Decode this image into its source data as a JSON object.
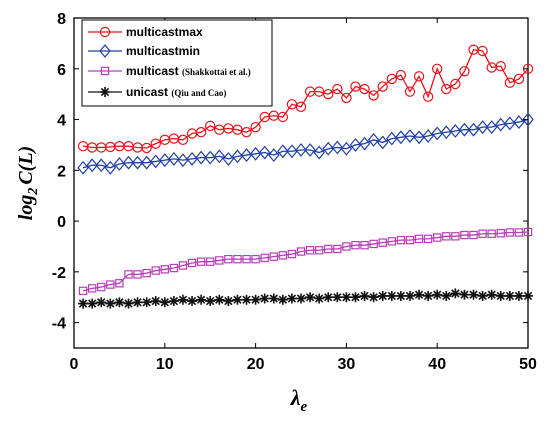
{
  "chart_data": {
    "type": "line",
    "xlabel_main": "λ",
    "xlabel_sub": "e",
    "ylabel_pre": "log",
    "ylabel_sub": "2",
    "ylabel_post": "C(L)",
    "xlim": [
      0,
      50
    ],
    "ylim": [
      -5,
      8
    ],
    "xticks": [
      0,
      10,
      20,
      30,
      40,
      50
    ],
    "yticks": [
      -4,
      -2,
      0,
      2,
      4,
      6,
      8
    ],
    "grid": false,
    "legend_position": "top-left",
    "x": [
      1,
      2,
      3,
      4,
      5,
      6,
      7,
      8,
      9,
      10,
      11,
      12,
      13,
      14,
      15,
      16,
      17,
      18,
      19,
      20,
      21,
      22,
      23,
      24,
      25,
      26,
      27,
      28,
      29,
      30,
      31,
      32,
      33,
      34,
      35,
      36,
      37,
      38,
      39,
      40,
      41,
      42,
      43,
      44,
      45,
      46,
      47,
      48,
      49,
      50
    ],
    "series": [
      {
        "name": "multicastmax",
        "note": "",
        "color": "#e8141c",
        "marker": "circle",
        "values": [
          2.95,
          2.9,
          2.9,
          2.92,
          2.95,
          2.95,
          2.9,
          2.88,
          3.05,
          3.2,
          3.25,
          3.2,
          3.45,
          3.5,
          3.75,
          3.6,
          3.65,
          3.6,
          3.5,
          3.7,
          4.1,
          4.15,
          4.1,
          4.6,
          4.5,
          5.1,
          5.1,
          5.0,
          5.2,
          4.85,
          5.3,
          5.2,
          4.95,
          5.3,
          5.6,
          5.75,
          5.1,
          5.7,
          4.9,
          6.0,
          5.2,
          5.4,
          5.9,
          6.75,
          6.7,
          6.05,
          6.1,
          5.45,
          5.6,
          6.0
        ]
      },
      {
        "name": "multicastmin",
        "note": "",
        "color": "#1f3fa5",
        "marker": "diamond",
        "values": [
          2.1,
          2.2,
          2.2,
          2.1,
          2.25,
          2.3,
          2.3,
          2.3,
          2.35,
          2.4,
          2.45,
          2.4,
          2.45,
          2.5,
          2.5,
          2.55,
          2.45,
          2.55,
          2.6,
          2.65,
          2.7,
          2.6,
          2.75,
          2.75,
          2.8,
          2.8,
          2.7,
          2.85,
          2.9,
          2.85,
          3.0,
          3.05,
          3.2,
          3.1,
          3.25,
          3.3,
          3.35,
          3.3,
          3.35,
          3.45,
          3.5,
          3.55,
          3.6,
          3.6,
          3.7,
          3.7,
          3.8,
          3.85,
          3.9,
          4.0
        ]
      },
      {
        "name": "multicast",
        "note": "(Shakkottai et al.)",
        "color": "#b83db8",
        "marker": "square",
        "values": [
          -2.75,
          -2.65,
          -2.6,
          -2.5,
          -2.45,
          -2.1,
          -2.1,
          -2.05,
          -1.95,
          -1.9,
          -1.85,
          -1.75,
          -1.65,
          -1.6,
          -1.6,
          -1.55,
          -1.5,
          -1.5,
          -1.5,
          -1.5,
          -1.45,
          -1.4,
          -1.35,
          -1.3,
          -1.2,
          -1.15,
          -1.15,
          -1.1,
          -1.1,
          -1.0,
          -0.95,
          -0.95,
          -0.9,
          -0.85,
          -0.8,
          -0.75,
          -0.75,
          -0.7,
          -0.7,
          -0.65,
          -0.6,
          -0.6,
          -0.55,
          -0.55,
          -0.5,
          -0.5,
          -0.48,
          -0.45,
          -0.45,
          -0.43
        ]
      },
      {
        "name": "unicast",
        "note": "(Qiu and Cao)",
        "color": "#111111",
        "marker": "star",
        "values": [
          -3.25,
          -3.25,
          -3.2,
          -3.25,
          -3.2,
          -3.25,
          -3.2,
          -3.2,
          -3.15,
          -3.2,
          -3.15,
          -3.1,
          -3.15,
          -3.1,
          -3.15,
          -3.1,
          -3.15,
          -3.1,
          -3.1,
          -3.1,
          -3.05,
          -3.05,
          -3.1,
          -3.05,
          -3.05,
          -3.0,
          -3.05,
          -3.0,
          -3.0,
          -3.0,
          -3.0,
          -2.95,
          -3.0,
          -2.95,
          -2.95,
          -2.95,
          -2.95,
          -2.9,
          -2.95,
          -2.9,
          -2.95,
          -2.85,
          -2.9,
          -2.9,
          -2.95,
          -2.9,
          -2.95,
          -2.95,
          -2.95,
          -2.95
        ]
      }
    ]
  }
}
